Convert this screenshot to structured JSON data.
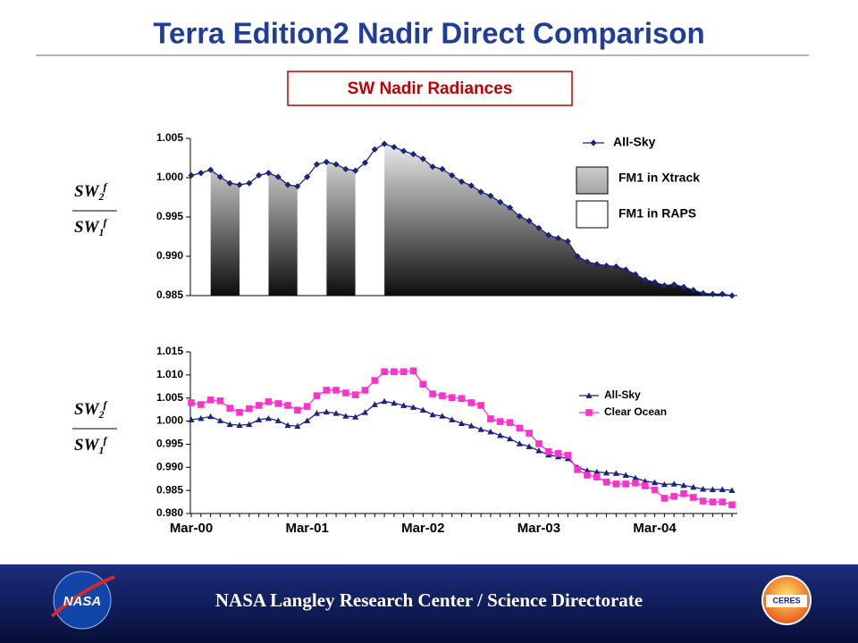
{
  "header": {
    "title": "Terra Edition2 Nadir Direct Comparison",
    "panel_title": "SW Nadir Radiances"
  },
  "chart_data": [
    {
      "type": "area",
      "ylabel": {
        "numerator": [
          "SW",
          "2",
          "f"
        ],
        "denominator": [
          "SW",
          "1",
          "f"
        ]
      },
      "ylim": [
        0.985,
        1.005
      ],
      "yticks": [
        1.005,
        {
          "value": 1.0,
          "label": "1.000"
        },
        0.995,
        {
          "value": 0.99,
          "label": "0.990"
        },
        0.985
      ],
      "series": [
        {
          "name": "FM1 in Xtrack",
          "kind": "area",
          "colors": [
            "#f2f2f2",
            "#0d0d0d"
          ],
          "values": [
            null,
            null,
            1.001,
            1.0001,
            0.9993,
            0.9991,
            null,
            null,
            1.0006,
            1.0001,
            0.9991,
            0.9989,
            null,
            null,
            1.002,
            1.0017,
            1.0011,
            1.0009,
            null,
            null,
            1.0043,
            1.0039,
            1.0034,
            1.003,
            1.0024,
            1.0014,
            1.0011,
            1.0003,
            0.9995,
            0.999,
            0.9982,
            0.9977,
            0.9969,
            0.9962,
            0.9951,
            0.9945,
            0.9936,
            0.9927,
            0.9923,
            0.9919,
            0.99,
            0.9893,
            0.989,
            0.9888,
            0.9887,
            0.9883,
            0.9877,
            0.987,
            0.9867,
            0.9863,
            0.9864,
            0.9861,
            0.9857,
            0.9853,
            0.9852,
            0.9852,
            0.985
          ]
        },
        {
          "name": "FM1 in RAPS",
          "kind": "area",
          "color": "#ffffff",
          "values": [
            1.0003,
            1.0006,
            1.001,
            null,
            null,
            0.9991,
            0.9993,
            1.0003,
            1.0006,
            null,
            null,
            0.9989,
            1.0001,
            1.0017,
            1.002,
            null,
            null,
            1.0009,
            1.0019,
            1.0036,
            1.0043,
            null,
            null,
            null,
            null,
            null,
            null,
            null,
            null,
            null,
            null,
            null,
            null,
            null,
            null,
            null,
            null,
            null,
            null,
            null,
            null,
            null,
            null,
            null,
            null,
            null,
            null,
            null,
            null,
            null,
            null,
            null,
            null,
            null,
            null,
            null,
            null
          ]
        },
        {
          "name": "All-Sky",
          "kind": "line",
          "marker": "diamond",
          "color": "#1a237e",
          "values": [
            1.0003,
            1.0006,
            1.001,
            1.0001,
            0.9993,
            0.9991,
            0.9993,
            1.0003,
            1.0006,
            1.0001,
            0.9991,
            0.9989,
            1.0001,
            1.0017,
            1.002,
            1.0017,
            1.0011,
            1.0009,
            1.0019,
            1.0036,
            1.0043,
            1.0039,
            1.0034,
            1.003,
            1.0024,
            1.0014,
            1.0011,
            1.0003,
            0.9995,
            0.999,
            0.9982,
            0.9977,
            0.9969,
            0.9962,
            0.9951,
            0.9945,
            0.9936,
            0.9927,
            0.9923,
            0.9919,
            0.99,
            0.9893,
            0.989,
            0.9888,
            0.9887,
            0.9883,
            0.9877,
            0.987,
            0.9867,
            0.9863,
            0.9864,
            0.9861,
            0.9857,
            0.9853,
            0.9852,
            0.9852,
            0.985
          ]
        }
      ]
    },
    {
      "type": "line",
      "ylabel": {
        "numerator": [
          "SW",
          "2",
          "f"
        ],
        "denominator": [
          "SW",
          "1",
          "f"
        ]
      },
      "categories": [
        "Mar-00",
        null,
        null,
        null,
        null,
        null,
        null,
        null,
        null,
        null,
        null,
        null,
        "Mar-01",
        null,
        null,
        null,
        null,
        null,
        null,
        null,
        null,
        null,
        null,
        null,
        "Mar-02",
        null,
        null,
        null,
        null,
        null,
        null,
        null,
        null,
        null,
        null,
        null,
        "Mar-03",
        null,
        null,
        null,
        null,
        null,
        null,
        null,
        null,
        null,
        null,
        null,
        "Mar-04",
        null,
        null,
        null,
        null,
        null,
        null,
        null,
        null
      ],
      "ylim": [
        0.98,
        1.015
      ],
      "yticks": [
        {
          "value": 1.015,
          "label": "1.015"
        },
        {
          "value": 1.01,
          "label": "1.010"
        },
        1.005,
        {
          "value": 1.0,
          "label": "1.000"
        },
        0.995,
        {
          "value": 0.99,
          "label": "0.990"
        },
        0.985,
        {
          "value": 0.98,
          "label": "0.980"
        }
      ],
      "series": [
        {
          "name": "All-Sky",
          "kind": "line",
          "marker": "triangle",
          "color": "#1a237e",
          "values": [
            1.0003,
            1.0006,
            1.001,
            1.0001,
            0.9993,
            0.9991,
            0.9993,
            1.0003,
            1.0006,
            1.0001,
            0.9991,
            0.9989,
            1.0001,
            1.0017,
            1.002,
            1.0017,
            1.0011,
            1.0009,
            1.0019,
            1.0036,
            1.0043,
            1.0039,
            1.0034,
            1.003,
            1.0024,
            1.0014,
            1.0011,
            1.0003,
            0.9995,
            0.999,
            0.9982,
            0.9977,
            0.9969,
            0.9962,
            0.9951,
            0.9945,
            0.9936,
            0.9927,
            0.9923,
            0.9919,
            0.99,
            0.9893,
            0.989,
            0.9888,
            0.9887,
            0.9883,
            0.9877,
            0.987,
            0.9867,
            0.9863,
            0.9864,
            0.9861,
            0.9857,
            0.9853,
            0.9852,
            0.9852,
            0.985
          ]
        },
        {
          "name": "Clear Ocean",
          "kind": "line",
          "marker": "square",
          "color": "#ff33cc",
          "values": [
            1.004,
            1.0036,
            1.0046,
            1.0044,
            1.0028,
            1.0019,
            1.0027,
            1.0034,
            1.0042,
            1.0038,
            1.0034,
            1.0024,
            1.0032,
            1.0055,
            1.0067,
            1.0067,
            1.0061,
            1.0057,
            1.0067,
            1.0088,
            1.0107,
            1.0107,
            1.0107,
            1.0109,
            1.008,
            1.0059,
            1.0055,
            1.0051,
            1.0049,
            1.004,
            1.0034,
            1.0005,
            0.9999,
            0.9997,
            0.9985,
            0.9974,
            0.9951,
            0.9934,
            0.993,
            0.9926,
            0.9895,
            0.9883,
            0.9879,
            0.9868,
            0.9864,
            0.9864,
            0.9866,
            0.986,
            0.9851,
            0.9833,
            0.9837,
            0.9843,
            0.9835,
            0.9827,
            0.9825,
            0.9825,
            0.9819
          ]
        }
      ]
    }
  ],
  "footer": {
    "text": "NASA Langley Research Center / Science Directorate",
    "logos": [
      "NASA",
      "CERES"
    ]
  }
}
